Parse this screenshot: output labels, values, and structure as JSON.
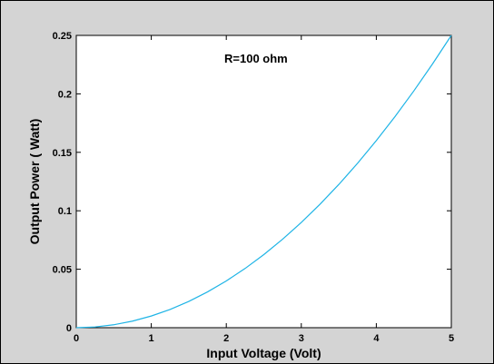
{
  "chart_data": {
    "type": "line",
    "title": "",
    "xlabel": "Input Voltage (Volt)",
    "ylabel": "Output Power ( Watt)",
    "xlim": [
      0,
      5
    ],
    "ylim": [
      0,
      0.25
    ],
    "x_ticks": [
      "0",
      "1",
      "2",
      "3",
      "4",
      "5"
    ],
    "y_ticks": [
      "0",
      "0.05",
      "0.1",
      "0.15",
      "0.2",
      "0.25"
    ],
    "grid": false,
    "legend": "none",
    "annotation": "R=100 ohm",
    "series": [
      {
        "line_color": "#1fb4e6",
        "x": [
          0,
          0.25,
          0.5,
          0.75,
          1,
          1.25,
          1.5,
          1.75,
          2,
          2.25,
          2.5,
          2.75,
          3,
          3.25,
          3.5,
          3.75,
          4,
          4.25,
          4.5,
          4.75,
          5
        ],
        "y": [
          0,
          0.000625,
          0.0025,
          0.005625,
          0.01,
          0.015625,
          0.0225,
          0.030625,
          0.04,
          0.050625,
          0.0625,
          0.075625,
          0.09,
          0.105625,
          0.1225,
          0.140625,
          0.16,
          0.180625,
          0.2025,
          0.225625,
          0.25
        ]
      }
    ]
  },
  "colors": {
    "figure_background": "#d4d4d4",
    "plot_background": "#ffffff",
    "line": "#1fb4e6"
  }
}
